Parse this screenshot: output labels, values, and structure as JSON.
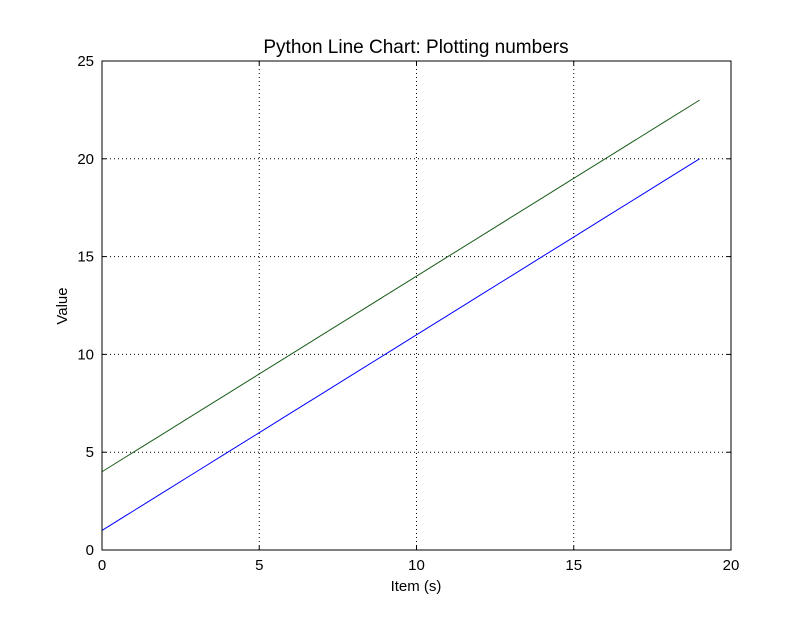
{
  "chart_data": {
    "type": "line",
    "title": "Python Line Chart: Plotting numbers",
    "xlabel": "Item (s)",
    "ylabel": "Value",
    "xlim": [
      0,
      20
    ],
    "ylim": [
      0,
      25
    ],
    "xticks": [
      0,
      5,
      10,
      15,
      20
    ],
    "yticks": [
      0,
      5,
      10,
      15,
      20,
      25
    ],
    "grid": true,
    "x": [
      0,
      1,
      2,
      3,
      4,
      5,
      6,
      7,
      8,
      9,
      10,
      11,
      12,
      13,
      14,
      15,
      16,
      17,
      18,
      19
    ],
    "series": [
      {
        "color": "#0000ff",
        "values": [
          1,
          2,
          3,
          4,
          5,
          6,
          7,
          8,
          9,
          10,
          11,
          12,
          13,
          14,
          15,
          16,
          17,
          18,
          19,
          20
        ]
      },
      {
        "color": "#1a5c1a",
        "values": [
          4,
          5,
          6,
          7,
          8,
          9,
          10,
          11,
          12,
          13,
          14,
          15,
          16,
          17,
          18,
          19,
          20,
          21,
          22,
          23
        ]
      }
    ]
  }
}
